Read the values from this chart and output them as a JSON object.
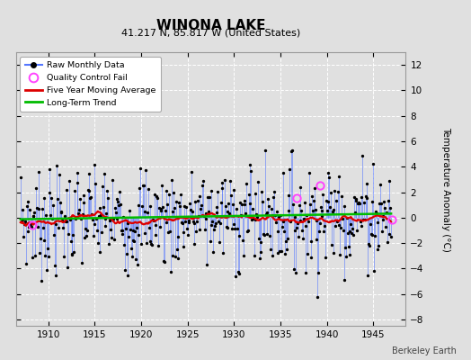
{
  "title": "WINONA LAKE",
  "subtitle": "41.217 N, 85.817 W (United States)",
  "ylabel": "Temperature Anomaly (°C)",
  "credit": "Berkeley Earth",
  "ylim": [
    -8.5,
    13.0
  ],
  "xlim": [
    1906.5,
    1948.5
  ],
  "xticks": [
    1910,
    1915,
    1920,
    1925,
    1930,
    1935,
    1940,
    1945
  ],
  "yticks": [
    -8,
    -6,
    -4,
    -2,
    0,
    2,
    4,
    6,
    8,
    10,
    12
  ],
  "bg_color": "#e0e0e0",
  "plot_bg_color": "#e0e0e0",
  "grid_color": "#ffffff",
  "raw_color": "#5577ff",
  "raw_dot_color": "#000000",
  "moving_avg_color": "#dd0000",
  "trend_color": "#00bb00",
  "qc_fail_color": "#ff44ff",
  "seed": 12345,
  "n_months": 480,
  "start_year": 1907.0,
  "qc_fail_points": [
    [
      1908.25,
      -0.55
    ],
    [
      1936.75,
      1.55
    ],
    [
      1939.25,
      2.55
    ],
    [
      1947.0,
      -0.15
    ]
  ]
}
